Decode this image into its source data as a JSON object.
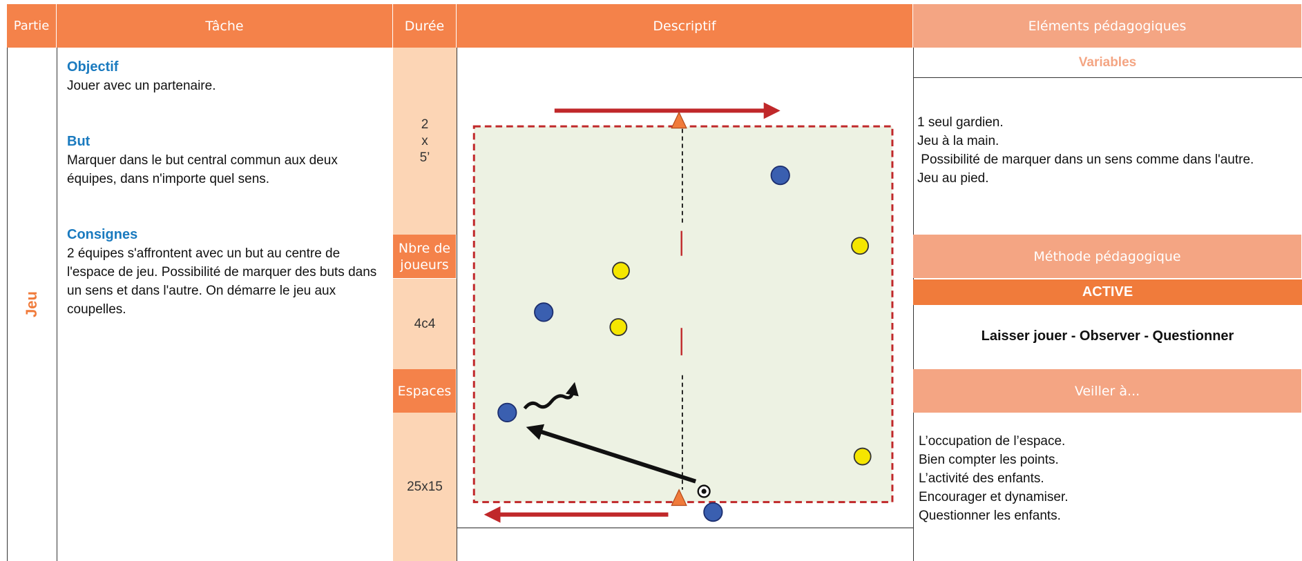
{
  "header": {
    "columns": [
      "Partie",
      "Tâche",
      "Durée",
      "Descriptif",
      "Eléments pédagogiques"
    ]
  },
  "part": "Jeu",
  "task": {
    "sections": [
      {
        "title": "Objectif",
        "text": "Jouer avec un partenaire."
      },
      {
        "title": "But",
        "text": "Marquer dans le but central commun aux deux équipes, dans n'importe quel sens."
      },
      {
        "title": "Consignes",
        "text": "2 équipes s'affrontent avec un but au centre de l'espace de jeu. Possibilité de marquer des buts dans un sens et dans l'autre. On démarre le jeu aux coupelles."
      }
    ]
  },
  "duration": {
    "lines": [
      "2",
      "x",
      "5’"
    ],
    "players_label": "Nbre de joueurs",
    "players": "4c4",
    "spaces_label": "Espaces",
    "spaces": "25x15"
  },
  "pedagogy": {
    "variables_title": "Variables",
    "variables": [
      "1 seul gardien.",
      "Jeu à la main.",
      " Possibilité de marquer dans un sens comme dans l'autre.",
      "Jeu au pied."
    ],
    "method_title": "Méthode pédagogique",
    "method": "ACTIVE",
    "method_text": "Laisser jouer - Observer - Questionner",
    "watch_title": "Veiller à...",
    "watch": [
      "L’occupation de l’espace.",
      "Bien compter les points.",
      "L’activité des enfants.",
      "Encourager et dynamiser.",
      "Questionner les enfants."
    ]
  }
}
